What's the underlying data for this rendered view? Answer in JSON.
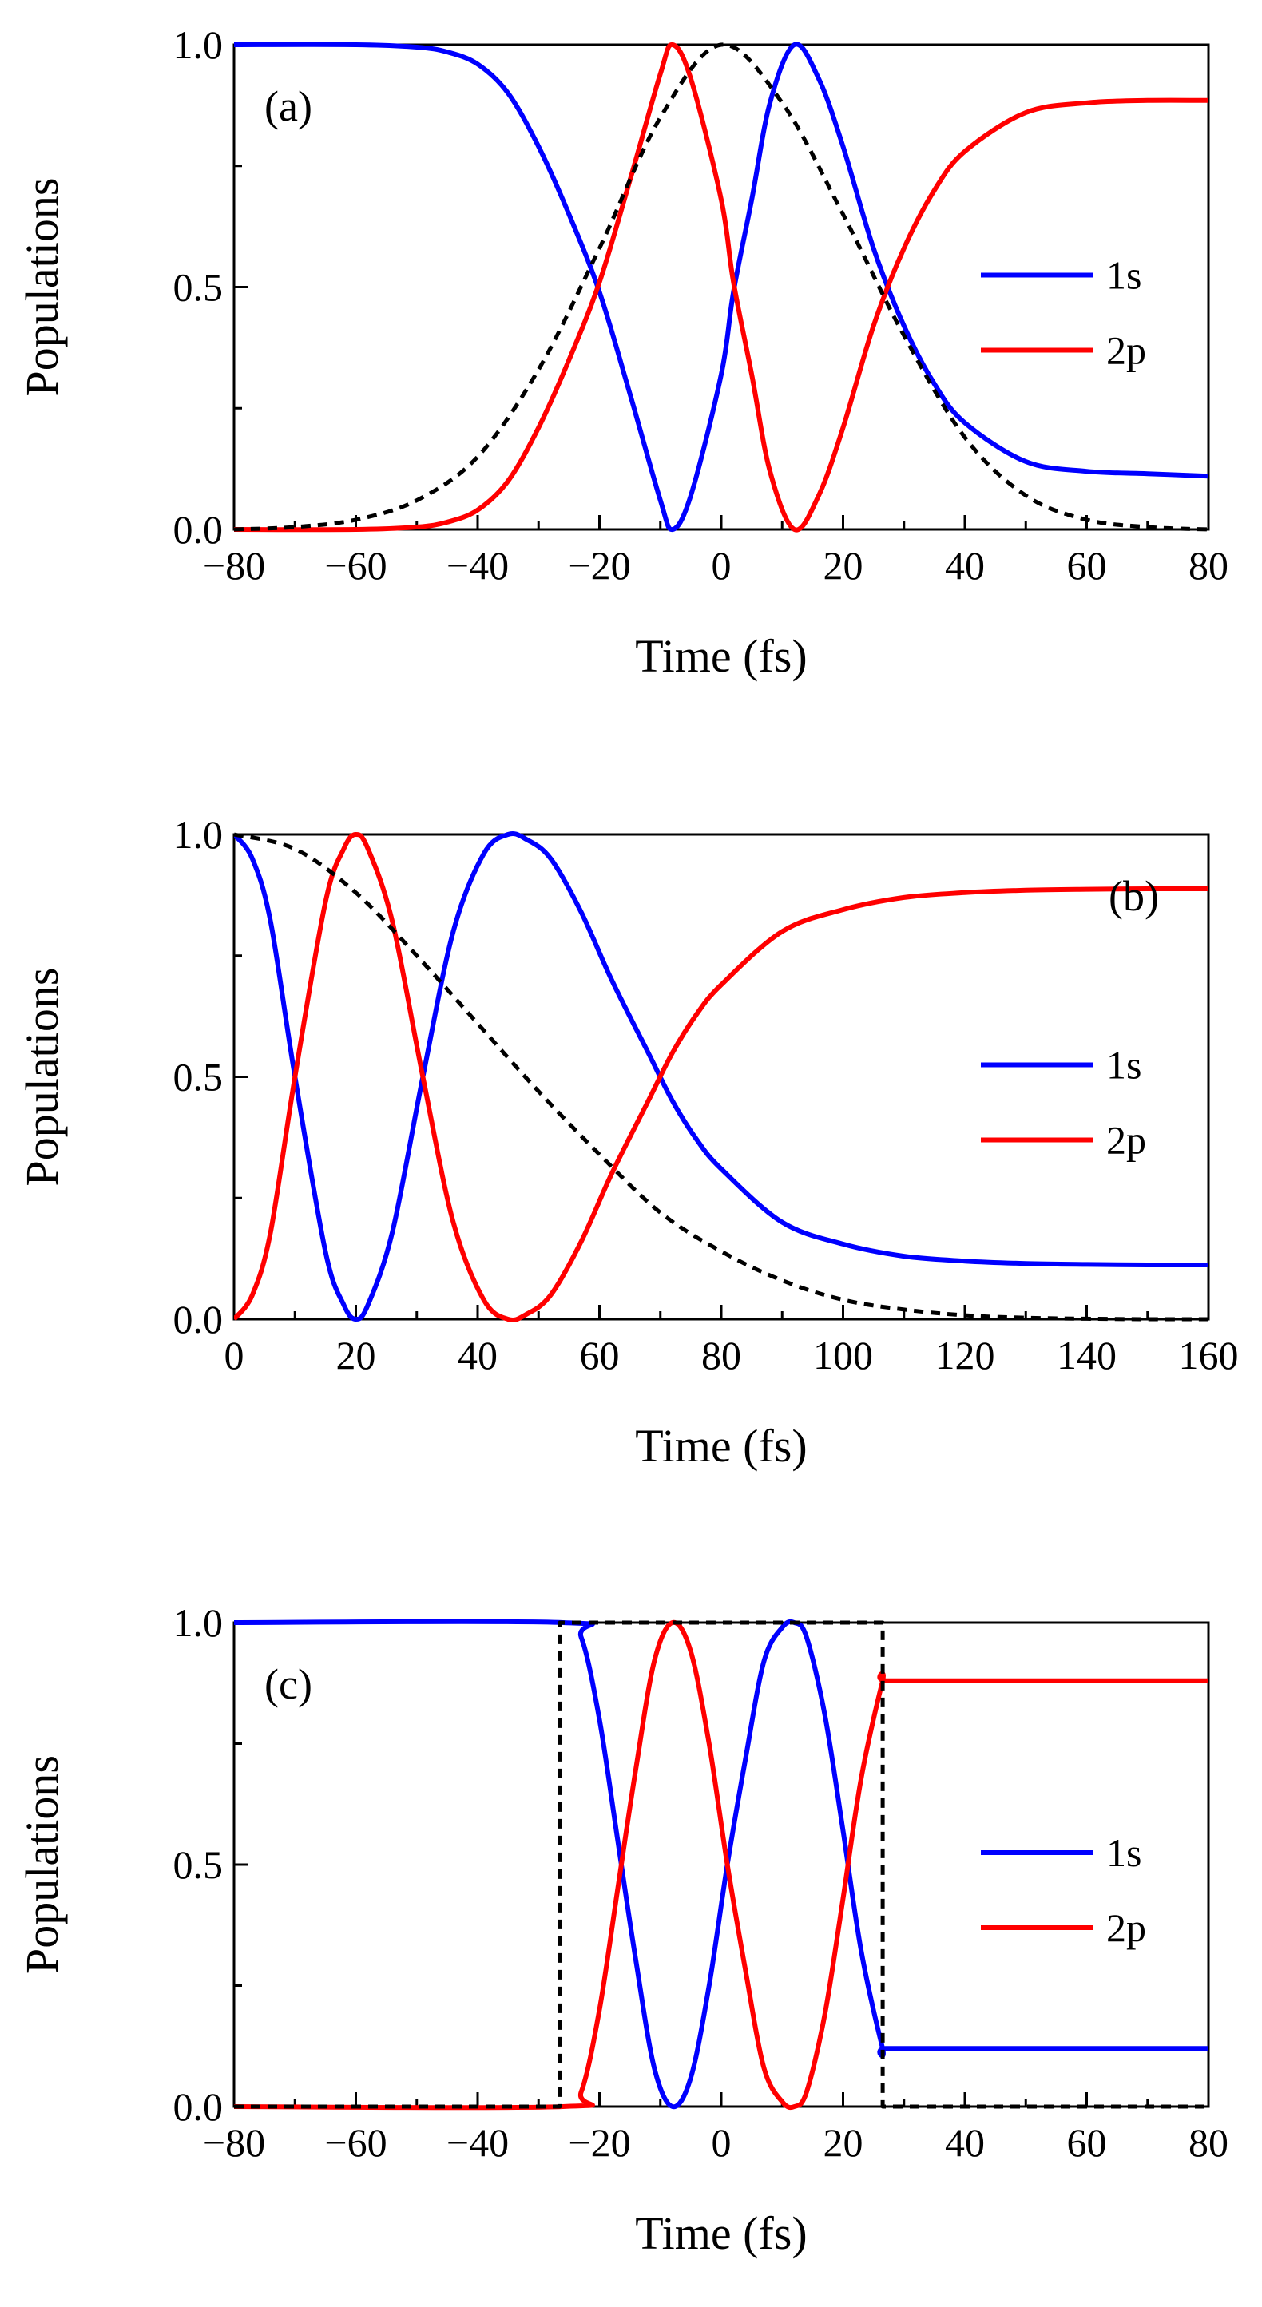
{
  "chart_data": [
    {
      "type": "line",
      "panel_label": "(a)",
      "xlabel": "Time (fs)",
      "ylabel": "Populations",
      "xlim": [
        -80,
        80
      ],
      "ylim": [
        0,
        1
      ],
      "xticks": [
        -80,
        -60,
        -40,
        -20,
        0,
        20,
        40,
        60,
        80
      ],
      "xtick_labels": [
        "−80",
        "−60",
        "−40",
        "−20",
        "0",
        "20",
        "40",
        "60",
        "80"
      ],
      "yticks": [
        0,
        0.5,
        1
      ],
      "ytick_labels": [
        "0.0",
        "0.5",
        "1.0"
      ],
      "legend": [
        "1s",
        "2p"
      ],
      "legend_position": "right",
      "colors": {
        "1s": "#0000ff",
        "2p": "#ff0000",
        "envelope": "#000000"
      },
      "series": [
        {
          "name": "1s",
          "style": "solid",
          "x": [
            -80,
            -60,
            -50,
            -45,
            -40,
            -35,
            -30,
            -25,
            -20,
            -15,
            -10,
            -8,
            -5,
            0,
            2,
            5,
            8,
            12,
            16,
            20,
            25,
            30,
            35,
            40,
            50,
            60,
            70,
            80
          ],
          "y": [
            1.0,
            1.0,
            0.995,
            0.985,
            0.96,
            0.9,
            0.79,
            0.65,
            0.49,
            0.28,
            0.06,
            0.0,
            0.07,
            0.32,
            0.49,
            0.68,
            0.88,
            1.0,
            0.93,
            0.79,
            0.58,
            0.42,
            0.3,
            0.22,
            0.14,
            0.12,
            0.115,
            0.11
          ]
        },
        {
          "name": "2p",
          "style": "solid",
          "x": [
            -80,
            -60,
            -50,
            -45,
            -40,
            -35,
            -30,
            -25,
            -20,
            -15,
            -10,
            -8,
            -5,
            0,
            2,
            5,
            8,
            12,
            16,
            20,
            25,
            30,
            35,
            40,
            50,
            60,
            70,
            80
          ],
          "y": [
            0.0,
            0.0,
            0.005,
            0.015,
            0.04,
            0.1,
            0.21,
            0.35,
            0.51,
            0.72,
            0.94,
            1.0,
            0.93,
            0.68,
            0.51,
            0.32,
            0.12,
            0.0,
            0.07,
            0.21,
            0.42,
            0.58,
            0.7,
            0.78,
            0.86,
            0.88,
            0.885,
            0.885
          ]
        },
        {
          "name": "envelope",
          "style": "dashed",
          "x": [
            -80,
            -70,
            -60,
            -50,
            -40,
            -30,
            -20,
            -10,
            0,
            10,
            20,
            30,
            40,
            50,
            60,
            70,
            80
          ],
          "y": [
            0.0,
            0.005,
            0.02,
            0.06,
            0.15,
            0.33,
            0.58,
            0.85,
            1.0,
            0.88,
            0.65,
            0.4,
            0.19,
            0.07,
            0.02,
            0.005,
            0.0
          ]
        }
      ]
    },
    {
      "type": "line",
      "panel_label": "(b)",
      "xlabel": "Time (fs)",
      "ylabel": "Populations",
      "xlim": [
        0,
        160
      ],
      "ylim": [
        0,
        1
      ],
      "xticks": [
        0,
        20,
        40,
        60,
        80,
        100,
        120,
        140,
        160
      ],
      "xtick_labels": [
        "0",
        "20",
        "40",
        "60",
        "80",
        "100",
        "120",
        "140",
        "160"
      ],
      "yticks": [
        0,
        0.5,
        1
      ],
      "ytick_labels": [
        "0.0",
        "0.5",
        "1.0"
      ],
      "legend": [
        "1s",
        "2p"
      ],
      "legend_position": "right",
      "colors": {
        "1s": "#0000ff",
        "2p": "#ff0000",
        "envelope": "#000000"
      },
      "series": [
        {
          "name": "1s",
          "style": "solid",
          "x": [
            0,
            3,
            6,
            10,
            15,
            18,
            20,
            22,
            26,
            31,
            36,
            41,
            45,
            48,
            52,
            57,
            62,
            68,
            72,
            76,
            80,
            90,
            100,
            110,
            120,
            130,
            140,
            150,
            160
          ],
          "y": [
            1.0,
            0.95,
            0.82,
            0.5,
            0.14,
            0.03,
            0.0,
            0.03,
            0.18,
            0.5,
            0.8,
            0.96,
            1.0,
            0.99,
            0.95,
            0.84,
            0.7,
            0.55,
            0.45,
            0.37,
            0.31,
            0.2,
            0.155,
            0.13,
            0.12,
            0.115,
            0.113,
            0.112,
            0.112
          ]
        },
        {
          "name": "2p",
          "style": "solid",
          "x": [
            0,
            3,
            6,
            10,
            15,
            18,
            20,
            22,
            26,
            31,
            36,
            41,
            45,
            48,
            52,
            57,
            62,
            68,
            72,
            76,
            80,
            90,
            100,
            110,
            120,
            130,
            140,
            150,
            160
          ],
          "y": [
            0.0,
            0.05,
            0.18,
            0.5,
            0.86,
            0.97,
            1.0,
            0.97,
            0.82,
            0.5,
            0.2,
            0.04,
            0.0,
            0.01,
            0.05,
            0.16,
            0.3,
            0.45,
            0.55,
            0.63,
            0.69,
            0.8,
            0.845,
            0.87,
            0.88,
            0.885,
            0.887,
            0.888,
            0.888
          ]
        },
        {
          "name": "envelope",
          "style": "dashed",
          "x": [
            0,
            10,
            20,
            30,
            40,
            50,
            60,
            70,
            80,
            90,
            100,
            110,
            120,
            130,
            140,
            150,
            160
          ],
          "y": [
            1.0,
            0.97,
            0.88,
            0.75,
            0.61,
            0.47,
            0.34,
            0.22,
            0.14,
            0.08,
            0.04,
            0.02,
            0.008,
            0.003,
            0.001,
            0.0,
            0.0
          ]
        }
      ]
    },
    {
      "type": "line",
      "panel_label": "(c)",
      "xlabel": "Time (fs)",
      "ylabel": "Populations",
      "xlim": [
        -80,
        80
      ],
      "ylim": [
        0,
        1
      ],
      "xticks": [
        -80,
        -60,
        -40,
        -20,
        0,
        20,
        40,
        60,
        80
      ],
      "xtick_labels": [
        "−80",
        "−60",
        "−40",
        "−20",
        "0",
        "20",
        "40",
        "60",
        "80"
      ],
      "yticks": [
        0,
        0.5,
        1
      ],
      "ytick_labels": [
        "0.0",
        "0.5",
        "1.0"
      ],
      "legend": [
        "1s",
        "2p"
      ],
      "legend_position": "right",
      "colors": {
        "1s": "#0000ff",
        "2p": "#ff0000",
        "envelope": "#000000"
      },
      "series": [
        {
          "name": "1s",
          "style": "solid",
          "x": [
            -80,
            -26,
            -23,
            -20,
            -17,
            -14,
            -11,
            -8,
            -5,
            -2,
            1,
            4,
            7,
            10,
            12,
            14,
            17,
            20,
            23,
            26.5,
            27,
            40,
            60,
            80
          ],
          "y": [
            1.0,
            1.0,
            0.97,
            0.8,
            0.55,
            0.3,
            0.08,
            0.0,
            0.06,
            0.25,
            0.5,
            0.72,
            0.92,
            0.99,
            1.0,
            0.97,
            0.81,
            0.57,
            0.32,
            0.12,
            0.12,
            0.12,
            0.12,
            0.12
          ]
        },
        {
          "name": "2p",
          "style": "solid",
          "x": [
            -80,
            -26,
            -23,
            -20,
            -17,
            -14,
            -11,
            -8,
            -5,
            -2,
            1,
            4,
            7,
            10,
            12,
            14,
            17,
            20,
            23,
            26.5,
            27,
            40,
            60,
            80
          ],
          "y": [
            0.0,
            0.0,
            0.03,
            0.2,
            0.45,
            0.7,
            0.92,
            1.0,
            0.94,
            0.75,
            0.5,
            0.28,
            0.08,
            0.01,
            0.0,
            0.03,
            0.19,
            0.43,
            0.68,
            0.88,
            0.88,
            0.88,
            0.88,
            0.88
          ]
        },
        {
          "name": "envelope",
          "style": "dashed",
          "x": [
            -80,
            -26.5,
            -26.5,
            26.5,
            26.5,
            80
          ],
          "y": [
            0.0,
            0.0,
            1.0,
            1.0,
            0.0,
            0.0
          ]
        }
      ]
    }
  ]
}
